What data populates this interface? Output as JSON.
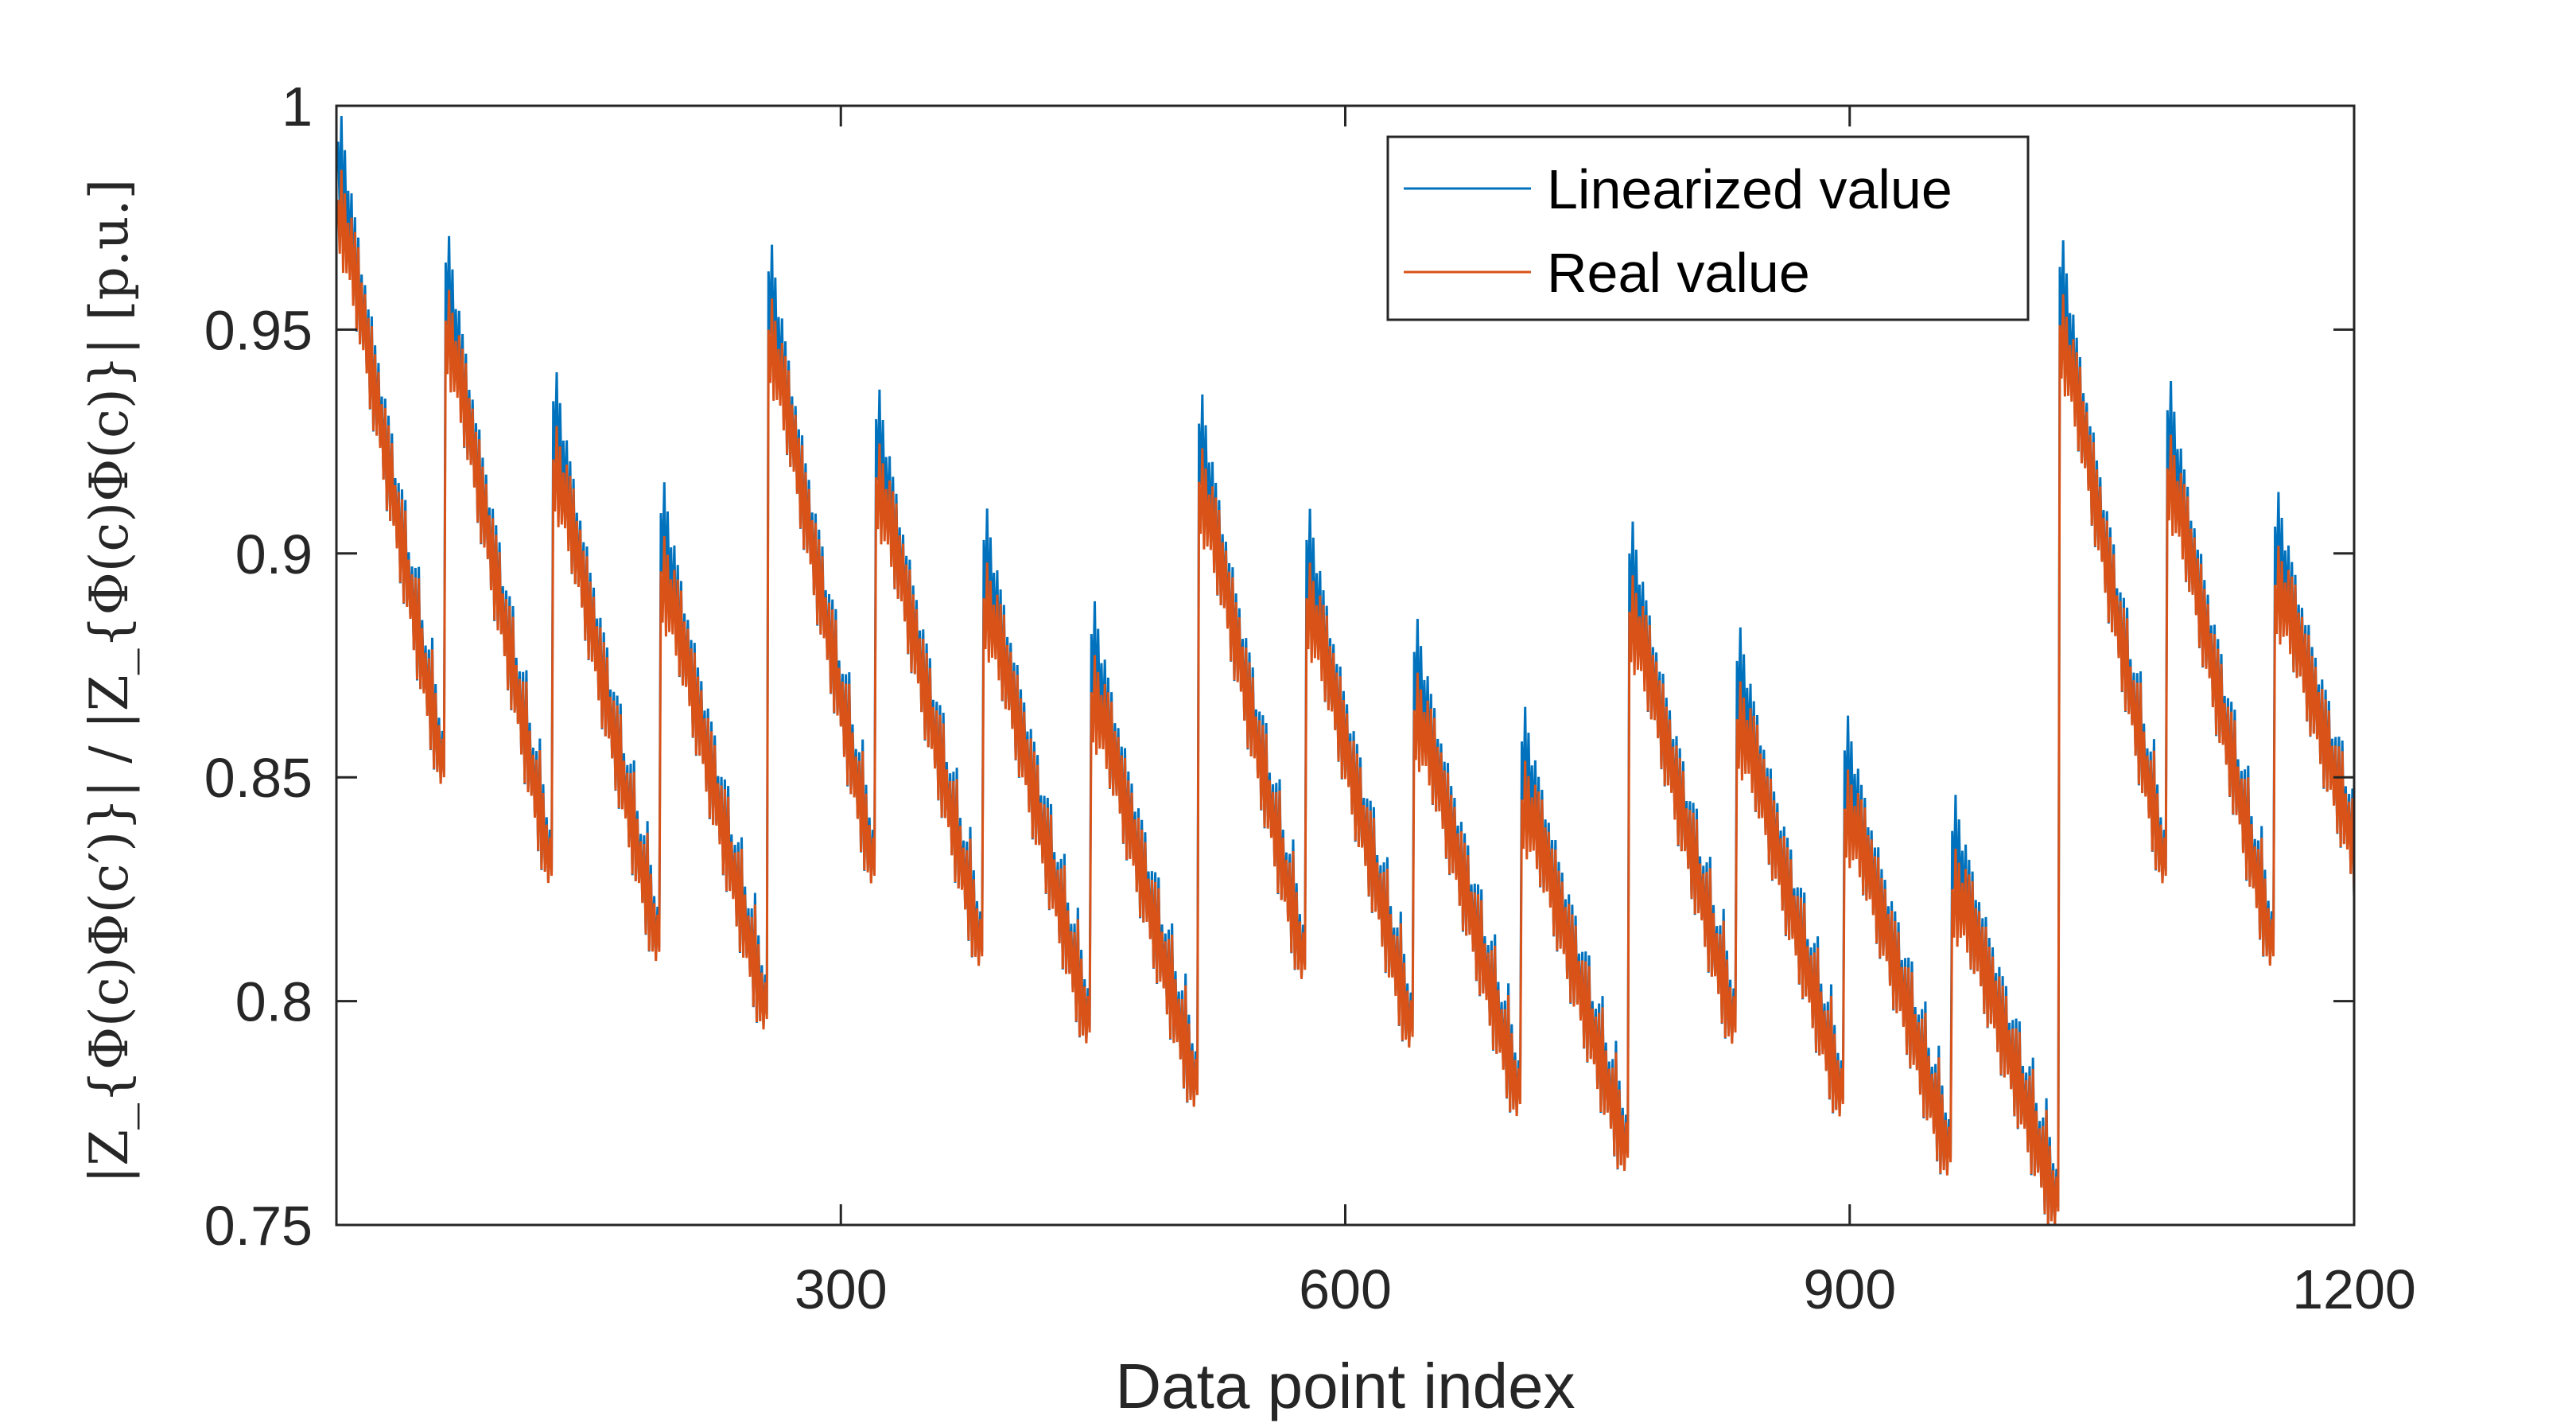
{
  "chart_data": {
    "type": "line",
    "xlabel": "Data point index",
    "ylabel": "|Z_{Φ(c)Φ(c′)}| / |Z_{Φ(c)Φ(c)}| [p.u.]",
    "xlim": [
      0,
      1200
    ],
    "ylim": [
      0.75,
      1.0
    ],
    "x_ticks": [
      300,
      600,
      900,
      1200
    ],
    "x_tick_labels": [
      "300",
      "600",
      "900",
      "1200"
    ],
    "y_ticks": [
      0.75,
      0.8,
      0.85,
      0.9,
      0.95,
      1.0
    ],
    "y_tick_labels": [
      "0.75",
      "0.8",
      "0.85",
      "0.9",
      "0.95",
      "1"
    ],
    "grid": false,
    "legend_position": "top-right",
    "series": [
      {
        "name": "Linearized value",
        "color": "#0072BD"
      },
      {
        "name": "Real value",
        "color": "#D95319"
      }
    ],
    "segments": [
      {
        "start": 1,
        "end": 64,
        "peak": 0.989,
        "low": 0.851
      },
      {
        "start": 65,
        "end": 128,
        "peak": 0.962,
        "low": 0.829
      },
      {
        "start": 129,
        "end": 192,
        "peak": 0.931,
        "low": 0.812
      },
      {
        "start": 193,
        "end": 256,
        "peak": 0.906,
        "low": 0.797
      },
      {
        "start": 257,
        "end": 320,
        "peak": 0.96,
        "low": 0.829
      },
      {
        "start": 321,
        "end": 384,
        "peak": 0.927,
        "low": 0.811
      },
      {
        "start": 385,
        "end": 448,
        "peak": 0.9,
        "low": 0.794
      },
      {
        "start": 449,
        "end": 512,
        "peak": 0.879,
        "low": 0.78
      },
      {
        "start": 513,
        "end": 576,
        "peak": 0.926,
        "low": 0.808
      },
      {
        "start": 577,
        "end": 640,
        "peak": 0.9,
        "low": 0.793
      },
      {
        "start": 641,
        "end": 704,
        "peak": 0.875,
        "low": 0.778
      },
      {
        "start": 705,
        "end": 768,
        "peak": 0.855,
        "low": 0.766
      },
      {
        "start": 769,
        "end": 832,
        "peak": 0.897,
        "low": 0.794
      },
      {
        "start": 833,
        "end": 896,
        "peak": 0.873,
        "low": 0.778
      },
      {
        "start": 897,
        "end": 960,
        "peak": 0.853,
        "low": 0.765
      },
      {
        "start": 961,
        "end": 1024,
        "peak": 0.835,
        "low": 0.754
      },
      {
        "start": 1025,
        "end": 1088,
        "peak": 0.961,
        "low": 0.829
      },
      {
        "start": 1089,
        "end": 1152,
        "peak": 0.929,
        "low": 0.811
      },
      {
        "start": 1153,
        "end": 1200,
        "peak": 0.903,
        "low": 0.814
      }
    ]
  }
}
